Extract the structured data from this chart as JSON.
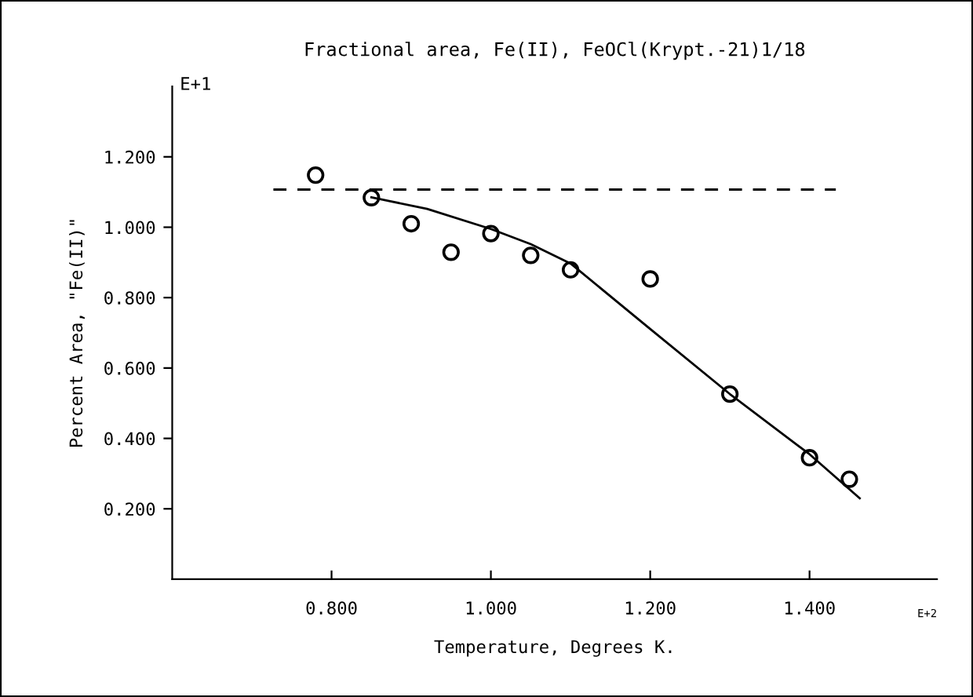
{
  "chart_data": {
    "type": "scatter",
    "title": "Fractional area, Fe(II), FeOCl(Krypt.-21)1/18",
    "xlabel": "Temperature, Degrees K.",
    "ylabel": "Percent Area, \"Fe(II)\"",
    "annotations": [
      "E+1",
      "E+2"
    ],
    "series": [
      {
        "color": "#000000",
        "marker": "circle",
        "x": [
          0.78,
          0.85,
          0.9,
          0.95,
          1.0,
          1.05,
          1.1,
          1.2,
          1.3,
          1.4,
          1.45
        ],
        "values": [
          1.148,
          1.084,
          1.01,
          0.929,
          0.982,
          0.92,
          0.879,
          0.853,
          0.526,
          0.345,
          0.284
        ]
      },
      {
        "type": "line",
        "color": "#000000",
        "line_style": "solid",
        "x": [
          0.85,
          0.92,
          1.0,
          1.05,
          1.1,
          1.2,
          1.3,
          1.4,
          1.463
        ],
        "values": [
          1.085,
          1.052,
          0.995,
          0.952,
          0.897,
          0.711,
          0.526,
          0.355,
          0.23
        ]
      },
      {
        "type": "line",
        "color": "#000000",
        "line_style": "dashed",
        "x": [
          0.727,
          1.433
        ],
        "values": [
          1.107,
          1.107
        ]
      }
    ],
    "xlim": [
      0.6,
      1.56
    ],
    "ylim": [
      0,
      1.4
    ],
    "xticks": [
      {
        "value": 0.8,
        "label": "0.800"
      },
      {
        "value": 1.0,
        "label": "1.000"
      },
      {
        "value": 1.2,
        "label": "1.200"
      },
      {
        "value": 1.4,
        "label": "1.400"
      }
    ],
    "yticks": [
      {
        "value": 0.2,
        "label": "0.200"
      },
      {
        "value": 0.4,
        "label": "0.400"
      },
      {
        "value": 0.6,
        "label": "0.600"
      },
      {
        "value": 0.8,
        "label": "0.800"
      },
      {
        "value": 1.0,
        "label": "1.000"
      },
      {
        "value": 1.2,
        "label": "1.200"
      }
    ],
    "grid": false,
    "legend": false
  }
}
